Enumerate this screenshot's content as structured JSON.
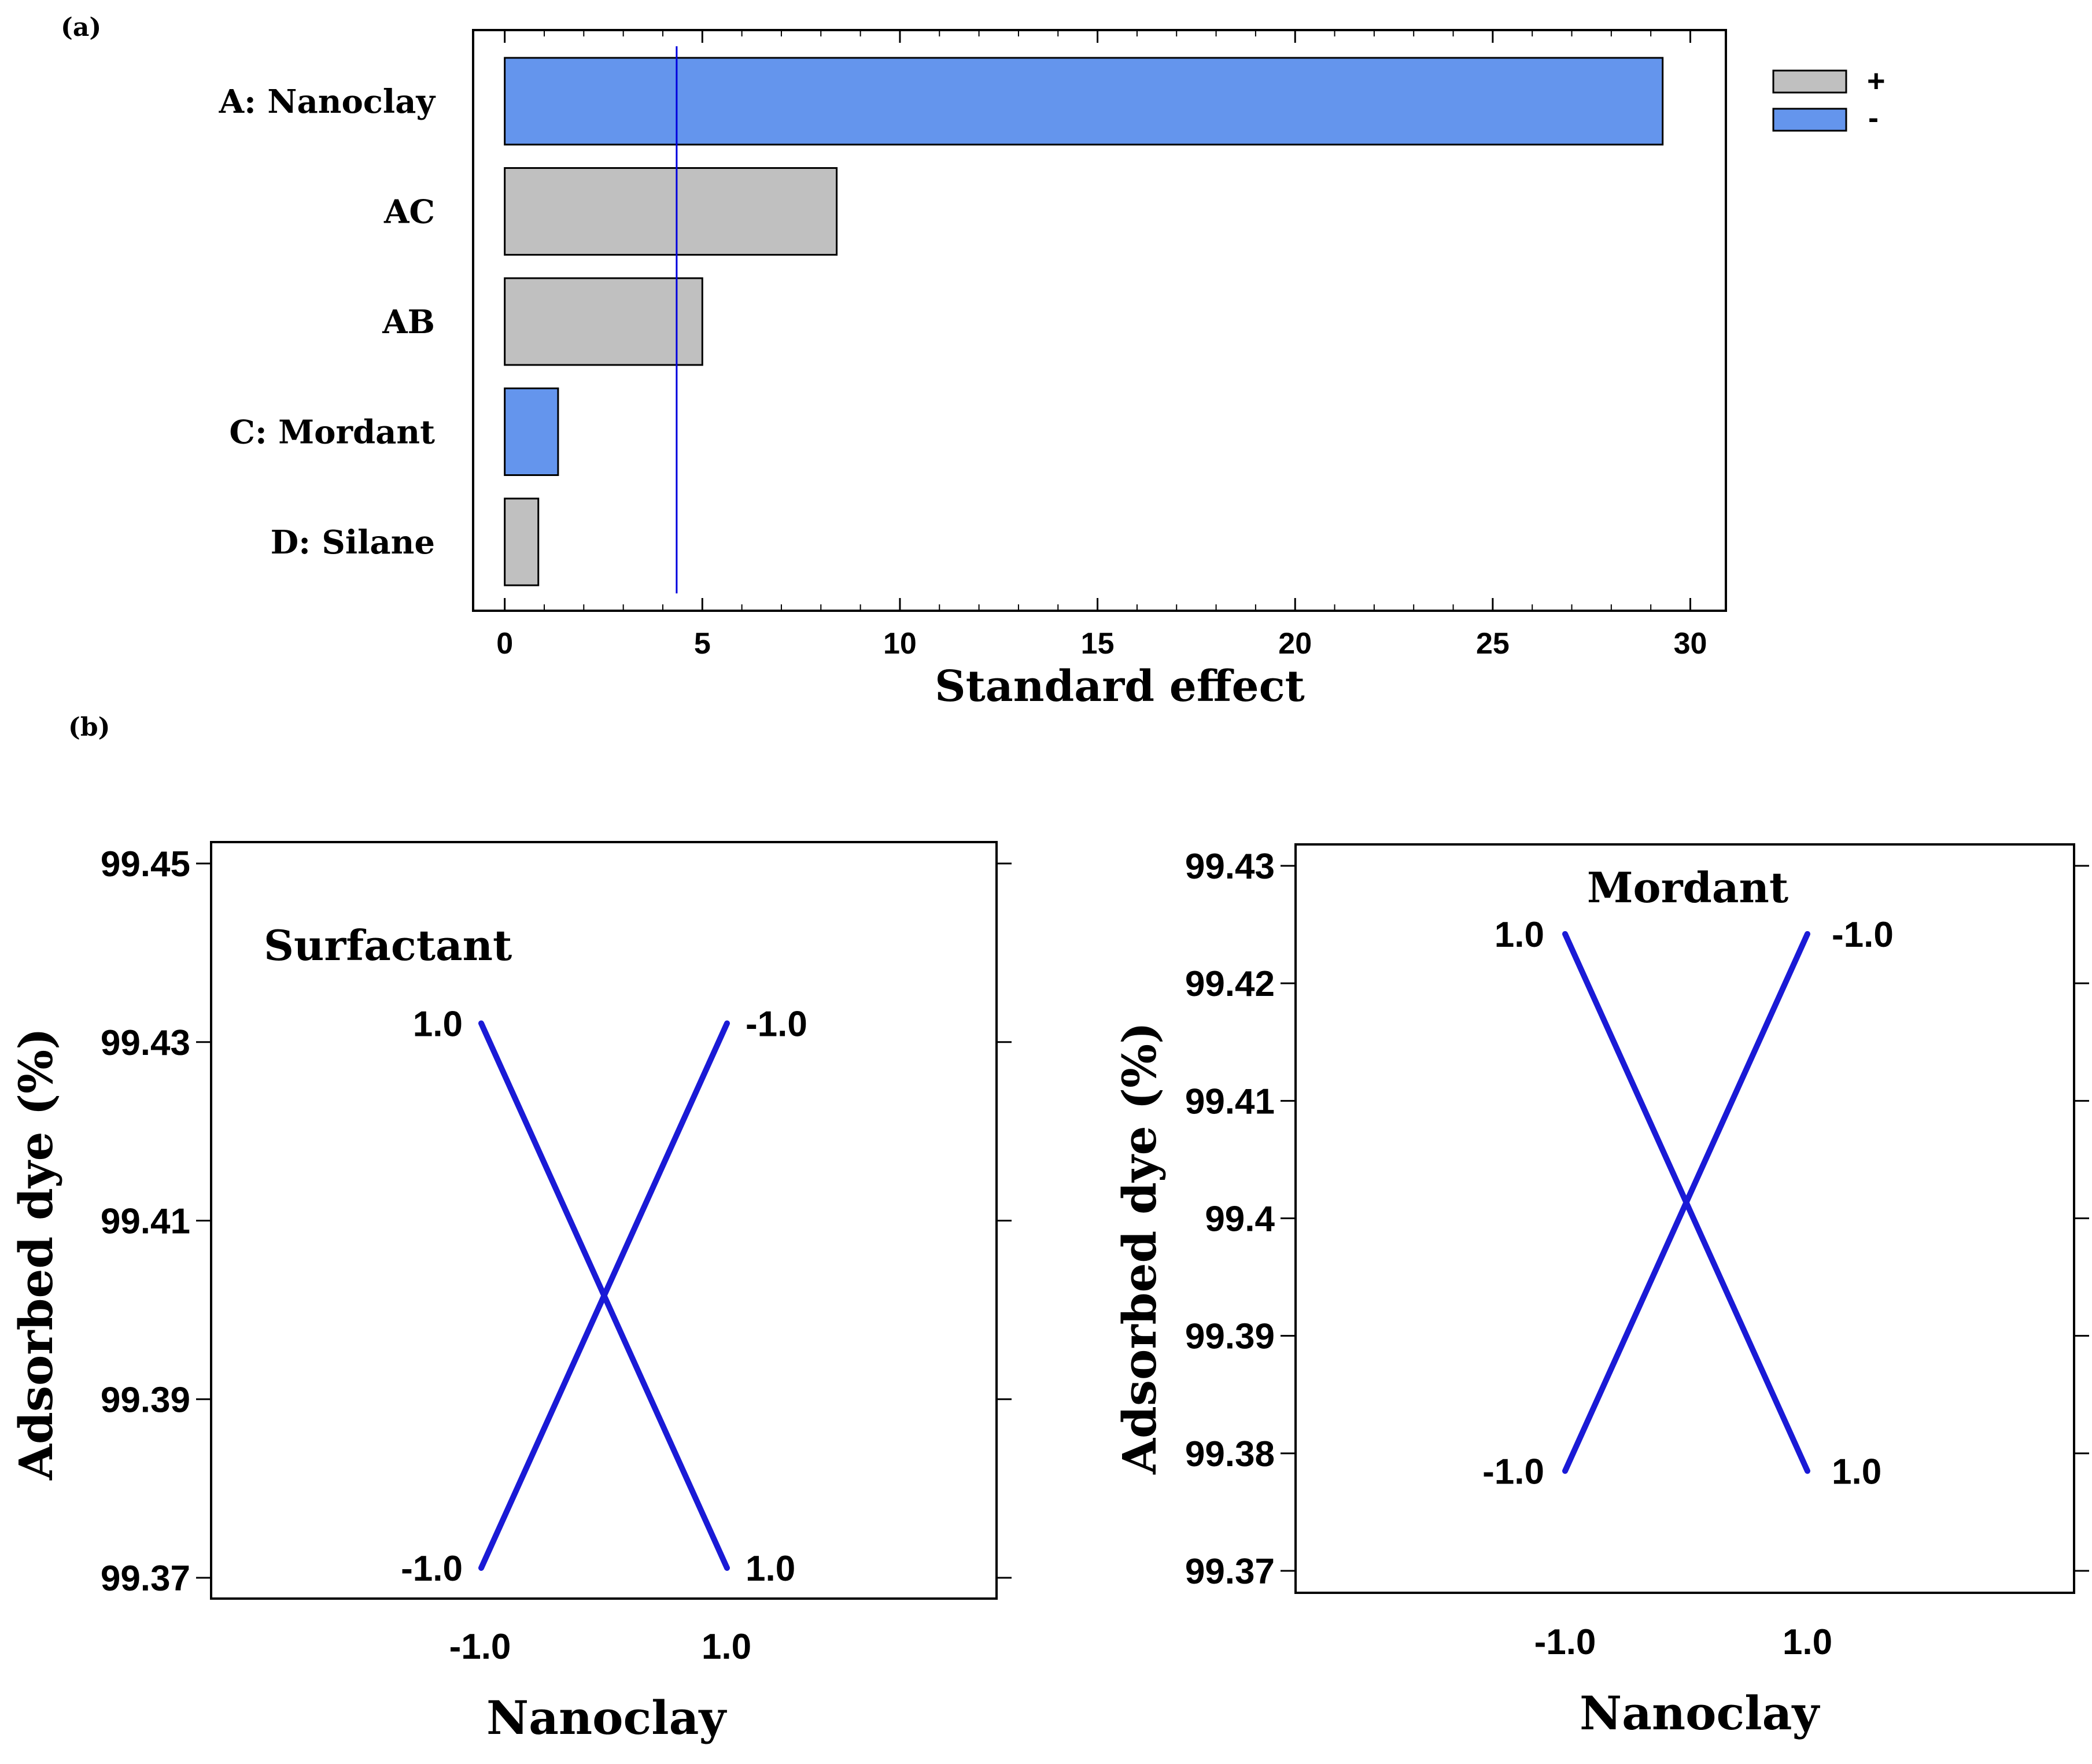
{
  "panel_labels": {
    "a": "(a)",
    "b": "(b)"
  },
  "legend": [
    {
      "sign": "+",
      "color": "#c0c0c0"
    },
    {
      "sign": "-",
      "color": "#6495ed"
    }
  ],
  "colors": {
    "positive": "#c0c0c0",
    "negative": "#6495ed",
    "line": "#1a1ad6",
    "reference": "#0000dd"
  },
  "chart_data": [
    {
      "type": "bar",
      "orientation": "horizontal",
      "title": "",
      "xlabel": "Standard effect",
      "ylabel": "",
      "categories": [
        "A: Nanoclay",
        "AC",
        "AB",
        "C: Mordant",
        "D: Silane"
      ],
      "values": [
        29.3,
        8.4,
        5.0,
        1.35,
        0.85
      ],
      "signs": [
        "-",
        "+",
        "+",
        "-",
        "+"
      ],
      "xlim": [
        -0.8,
        30.9
      ],
      "xticks": [
        "0",
        "5",
        "10",
        "15",
        "20",
        "25",
        "30"
      ],
      "reference_line": 4.35
    },
    {
      "type": "line",
      "title": "Surfactant",
      "xlabel": "Nanoclay",
      "ylabel": "Adsorbed dye (%)",
      "xticks": [
        "-1.0",
        "1.0"
      ],
      "yticks": [
        "99.37",
        "99.39",
        "99.41",
        "99.43",
        "99.45"
      ],
      "ylim": [
        99.37,
        99.45
      ],
      "series": [
        {
          "name": "1.0",
          "x": [
            -1.0,
            1.0
          ],
          "values": [
            99.4321,
            99.3711
          ],
          "start_label": "1.0",
          "end_label": "1.0"
        },
        {
          "name": "-1.0",
          "x": [
            -1.0,
            1.0
          ],
          "values": [
            99.3711,
            99.4321
          ],
          "start_label": "-1.0",
          "end_label": "-1.0"
        }
      ]
    },
    {
      "type": "line",
      "title": "Mordant",
      "xlabel": "Nanoclay",
      "ylabel": "Adsorbed dye (%)",
      "xticks": [
        "-1.0",
        "1.0"
      ],
      "yticks": [
        "99.37",
        "99.38",
        "99.39",
        "99.4",
        "99.41",
        "99.42",
        "99.43"
      ],
      "ylim": [
        99.37,
        99.43
      ],
      "series": [
        {
          "name": "1.0",
          "x": [
            -1.0,
            1.0
          ],
          "values": [
            99.4242,
            99.3785
          ],
          "start_label": "1.0",
          "end_label": "1.0"
        },
        {
          "name": "-1.0",
          "x": [
            -1.0,
            1.0
          ],
          "values": [
            99.3785,
            99.4242
          ],
          "start_label": "-1.0",
          "end_label": "-1.0"
        }
      ]
    }
  ]
}
